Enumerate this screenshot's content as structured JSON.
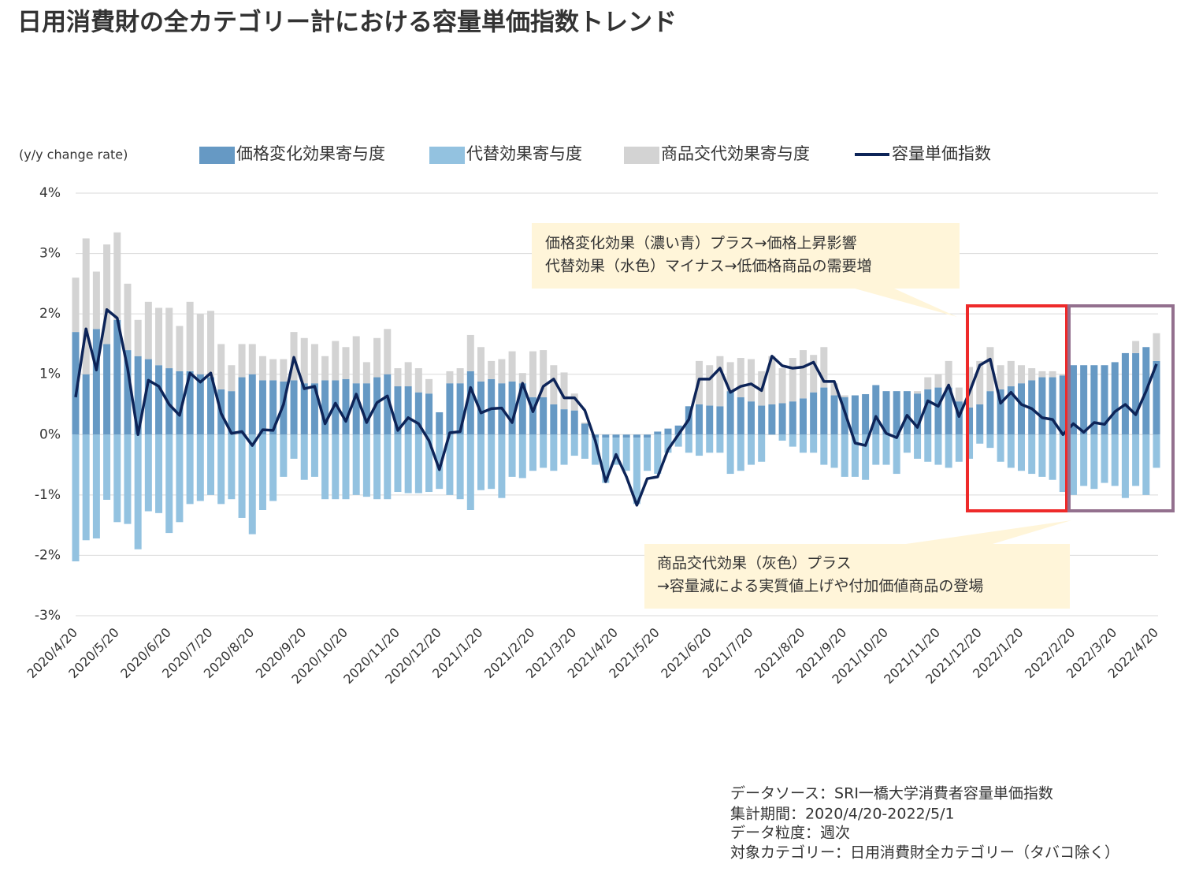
{
  "chart_data": {
    "type": "bar-line",
    "title": "日用消費財の全カテゴリー計における容量単価指数トレンド",
    "y_axis_label": "(y/y change rate)",
    "categories": [
      "2020/4/20",
      null,
      null,
      null,
      "2020/5/20",
      null,
      null,
      null,
      null,
      "2020/6/20",
      null,
      null,
      null,
      "2020/7/20",
      null,
      null,
      null,
      "2020/8/20",
      null,
      null,
      null,
      null,
      "2020/9/20",
      null,
      null,
      null,
      "2020/10/20",
      null,
      null,
      null,
      null,
      "2020/11/20",
      null,
      null,
      null,
      "2020/12/20",
      null,
      null,
      null,
      "2021/1/20",
      null,
      null,
      null,
      null,
      "2021/2/20",
      null,
      null,
      null,
      "2021/3/20",
      null,
      null,
      null,
      "2021/4/20",
      null,
      null,
      null,
      "2021/5/20",
      null,
      null,
      null,
      null,
      "2021/6/20",
      null,
      null,
      null,
      "2021/7/20",
      null,
      null,
      null,
      null,
      "2021/8/20",
      null,
      null,
      null,
      "2021/9/20",
      null,
      null,
      null,
      "2021/10/20",
      null,
      null,
      null,
      null,
      "2021/11/20",
      null,
      null,
      null,
      "2021/12/20",
      null,
      null,
      null,
      "2022/1/20",
      null,
      null,
      null,
      null,
      "2022/2/20",
      null,
      null,
      null,
      "2022/3/20",
      null,
      null,
      null,
      "2022/4/20"
    ],
    "series": [
      {
        "name": "価格変化効果寄与度",
        "kind": "bar",
        "color": "#6699c4",
        "values": [
          1.7,
          1.0,
          1.75,
          1.5,
          1.9,
          1.4,
          1.3,
          1.25,
          1.15,
          1.1,
          1.05,
          1.05,
          1.0,
          0.95,
          0.75,
          0.72,
          0.95,
          1.0,
          0.9,
          0.9,
          0.88,
          0.9,
          0.85,
          0.85,
          0.9,
          0.9,
          0.92,
          0.85,
          0.85,
          0.95,
          1.0,
          0.8,
          0.8,
          0.7,
          0.68,
          0.37,
          0.85,
          0.85,
          1.05,
          0.88,
          0.92,
          0.85,
          0.88,
          0.85,
          0.62,
          0.62,
          0.5,
          0.42,
          0.4,
          0.18,
          -0.05,
          -0.05,
          -0.05,
          -0.05,
          -0.05,
          -0.05,
          0.05,
          0.1,
          0.15,
          0.47,
          0.5,
          0.48,
          0.47,
          0.72,
          0.62,
          0.55,
          0.48,
          0.5,
          0.52,
          0.55,
          0.6,
          0.7,
          0.78,
          0.65,
          0.62,
          0.65,
          0.67,
          0.82,
          0.72,
          0.72,
          0.72,
          0.68,
          0.75,
          0.78,
          0.78,
          0.55,
          0.45,
          0.5,
          0.72,
          0.75,
          0.8,
          0.85,
          0.9,
          0.95,
          0.95,
          0.98,
          1.15,
          1.15,
          1.15,
          1.15,
          1.2,
          1.35,
          1.35,
          1.45,
          1.22
        ]
      },
      {
        "name": "代替効果寄与度",
        "kind": "bar",
        "color": "#93c2e0",
        "values": [
          -2.1,
          -1.75,
          -1.72,
          -1.08,
          -1.45,
          -1.48,
          -1.9,
          -1.27,
          -1.3,
          -1.63,
          -1.45,
          -1.15,
          -1.1,
          -1.0,
          -1.15,
          -1.07,
          -1.38,
          -1.65,
          -1.25,
          -1.1,
          -0.7,
          -0.4,
          -0.75,
          -0.7,
          -1.07,
          -1.07,
          -1.07,
          -1.0,
          -1.03,
          -1.07,
          -1.07,
          -0.95,
          -0.97,
          -0.97,
          -0.95,
          -0.9,
          -1.0,
          -1.07,
          -1.25,
          -0.92,
          -0.9,
          -1.05,
          -0.7,
          -0.72,
          -0.6,
          -0.55,
          -0.6,
          -0.5,
          -0.35,
          -0.4,
          -0.45,
          -0.75,
          -0.45,
          -0.55,
          -1.1,
          -0.55,
          -0.65,
          -0.3,
          -0.2,
          -0.3,
          -0.35,
          -0.3,
          -0.3,
          -0.65,
          -0.6,
          -0.5,
          -0.45,
          0.0,
          -0.1,
          -0.2,
          -0.3,
          -0.3,
          -0.5,
          -0.55,
          -0.7,
          -0.7,
          -0.75,
          -0.5,
          -0.5,
          -0.65,
          -0.3,
          -0.4,
          -0.45,
          -0.5,
          -0.55,
          -0.45,
          -0.4,
          -0.15,
          -0.22,
          -0.45,
          -0.55,
          -0.6,
          -0.65,
          -0.7,
          -0.75,
          -0.95,
          -1.0,
          -0.85,
          -0.9,
          -0.8,
          -0.85,
          -1.05,
          -0.85,
          -1.0,
          -0.55
        ]
      },
      {
        "name": "商品交代効果寄与度",
        "kind": "bar",
        "color": "#d3d3d3",
        "values": [
          0.9,
          2.25,
          0.95,
          1.65,
          1.45,
          1.1,
          0.6,
          0.95,
          0.95,
          1.0,
          0.75,
          1.15,
          1.0,
          1.1,
          0.75,
          0.43,
          0.55,
          0.5,
          0.4,
          0.35,
          0.37,
          0.8,
          0.75,
          0.65,
          0.4,
          0.65,
          0.53,
          0.78,
          0.35,
          0.65,
          0.75,
          0.3,
          0.4,
          0.4,
          0.24,
          0,
          0.2,
          0.25,
          0.6,
          0.57,
          0.3,
          0.4,
          0.5,
          0.17,
          0.76,
          0.78,
          0.65,
          0.61,
          0.28,
          0.02,
          0,
          0,
          0,
          0,
          0,
          0,
          0,
          0,
          0,
          0,
          0.72,
          0.67,
          0.83,
          0.48,
          0.65,
          0.7,
          0.57,
          0.8,
          0.58,
          0.72,
          0.8,
          0.62,
          0.67,
          0.2,
          0.03,
          0,
          0,
          0,
          0,
          0,
          0,
          0.04,
          0.2,
          0.22,
          0.44,
          0.23,
          0.67,
          0.72,
          0.73,
          0.4,
          0.42,
          0.3,
          0.2,
          0.1,
          0.1,
          0.02,
          0,
          0,
          0,
          0,
          0,
          0,
          0.2,
          0,
          0.46
        ]
      },
      {
        "name": "容量単価指数",
        "kind": "line",
        "color": "#0d2458",
        "values": [
          0.62,
          1.75,
          1.07,
          2.07,
          1.93,
          1.1,
          0.0,
          0.9,
          0.8,
          0.5,
          0.32,
          1.02,
          0.87,
          1.02,
          0.35,
          0.02,
          0.05,
          -0.18,
          0.08,
          0.07,
          0.5,
          1.28,
          0.76,
          0.8,
          0.18,
          0.52,
          0.22,
          0.67,
          0.2,
          0.53,
          0.64,
          0.07,
          0.28,
          0.18,
          -0.1,
          -0.58,
          0.03,
          0.05,
          0.78,
          0.36,
          0.43,
          0.44,
          0.2,
          0.85,
          0.38,
          0.8,
          0.92,
          0.61,
          0.61,
          0.4,
          -0.1,
          -0.78,
          -0.33,
          -0.7,
          -1.17,
          -0.73,
          -0.7,
          -0.25,
          0.0,
          0.25,
          0.92,
          0.92,
          1.1,
          0.7,
          0.8,
          0.84,
          0.73,
          1.3,
          1.14,
          1.1,
          1.12,
          1.2,
          0.88,
          0.88,
          0.38,
          -0.14,
          -0.18,
          0.3,
          0.02,
          -0.05,
          0.32,
          0.12,
          0.56,
          0.47,
          0.82,
          0.3,
          0.7,
          1.15,
          1.25,
          0.52,
          0.7,
          0.5,
          0.43,
          0.28,
          0.25,
          0.0,
          0.18,
          0.04,
          0.2,
          0.17,
          0.38,
          0.5,
          0.33,
          0.72,
          1.17
        ]
      }
    ],
    "ylim": [
      -3,
      4
    ],
    "yticks": [
      {
        "value": -3,
        "label": "-3%"
      },
      {
        "value": -2,
        "label": "-2%"
      },
      {
        "value": -1,
        "label": "-1%"
      },
      {
        "value": 0,
        "label": "0%"
      },
      {
        "value": 1,
        "label": "1%"
      },
      {
        "value": 2,
        "label": "2%"
      },
      {
        "value": 3,
        "label": "3%"
      },
      {
        "value": 4,
        "label": "4%"
      }
    ],
    "grid": true,
    "annotations": [
      "価格変化効果（濃い青）プラス→価格上昇影響",
      "代替効果（水色）マイナス→低価格商品の需要増",
      "商品交代効果（灰色）プラス",
      "→容量減による実質値上げや付加価値商品の登場"
    ],
    "notes": [
      "データソース：SRI一橋大学消費者容量単価指数",
      "集計期間：2020/4/20-2022/5/1",
      "データ粒度：週次",
      "対象カテゴリー：日用消費財全カテゴリー（タバコ除く）"
    ]
  }
}
